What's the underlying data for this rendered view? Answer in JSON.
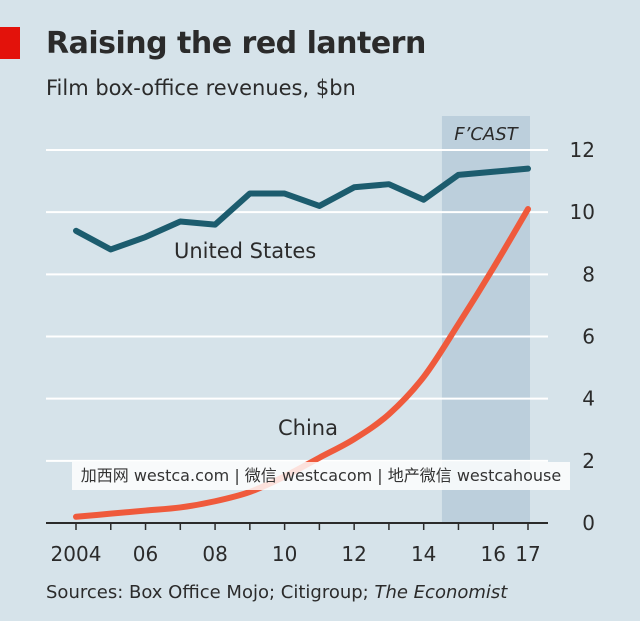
{
  "chart_data": {
    "type": "line",
    "title": "Raising the red lantern",
    "subtitle": "Film box-office revenues, $bn",
    "source_prefix": "Sources: Box Office Mojo; Citigroup; ",
    "source_publication": "The Economist",
    "x": [
      2004,
      2005,
      2006,
      2007,
      2008,
      2009,
      2010,
      2011,
      2012,
      2013,
      2014,
      2015,
      2016,
      2017
    ],
    "x_tick_values": [
      2004,
      2006,
      2008,
      2010,
      2012,
      2014,
      2016,
      2017
    ],
    "x_tick_labels": [
      "2004",
      "06",
      "08",
      "10",
      "12",
      "14",
      "16",
      "17"
    ],
    "ylim": [
      0,
      12
    ],
    "y_tick_values": [
      0,
      2,
      4,
      6,
      8,
      10,
      12
    ],
    "y_tick_labels": [
      "0",
      "2",
      "4",
      "6",
      "8",
      "10",
      "12"
    ],
    "grid": true,
    "y_axis_side": "right",
    "forecast": {
      "label": "F’CAST",
      "from": 2015,
      "to": 2017
    },
    "series": [
      {
        "name": "United States",
        "color": "#1c5c6e",
        "values": [
          9.4,
          8.8,
          9.2,
          9.7,
          9.6,
          10.6,
          10.6,
          10.2,
          10.8,
          10.9,
          10.4,
          11.2,
          11.3,
          11.4
        ]
      },
      {
        "name": "China",
        "color": "#ef5a3c",
        "values": [
          0.2,
          0.3,
          0.4,
          0.5,
          0.7,
          1.0,
          1.5,
          2.1,
          2.7,
          3.5,
          4.7,
          6.4,
          8.2,
          10.1
        ]
      }
    ]
  },
  "colors": {
    "background": "#d6e3ea",
    "gridline": "#ffffff",
    "forecast_band": "#bccfdc",
    "brand_red": "#e3120b"
  },
  "watermark": "加西网 westca.com | 微信 westcacom | 地产微信 westcahouse"
}
